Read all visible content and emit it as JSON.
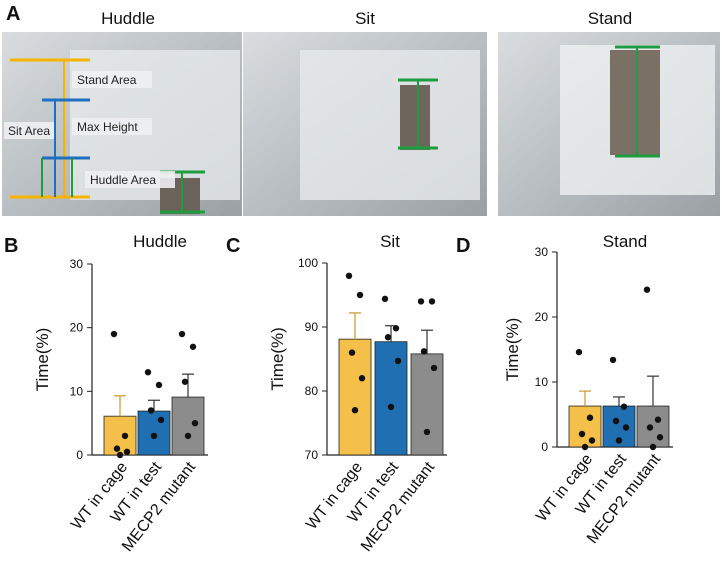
{
  "panel_a": {
    "label": "A",
    "titles": [
      "Huddle",
      "Sit",
      "Stand"
    ],
    "annotations": [
      "Stand Area",
      "Max Height",
      "Sit Area",
      "Huddle Area"
    ]
  },
  "chart_data": [
    {
      "type": "bar",
      "panel_label": "B",
      "title": "Huddle",
      "y_label": "Time(%)",
      "categories": [
        "WT in cage",
        "WT in test",
        "MECP2 mutant"
      ],
      "values": [
        6.1,
        6.9,
        9.1
      ],
      "errors": [
        3.2,
        1.7,
        3.6
      ],
      "points": [
        [
          19,
          3,
          1,
          0.5,
          0
        ],
        [
          13,
          11,
          7,
          5.5,
          3
        ],
        [
          19,
          17,
          11.5,
          5,
          3
        ]
      ],
      "colors": [
        "#f5c04a",
        "#1f6fb2",
        "#8c8c8c"
      ],
      "ylim": [
        0,
        30
      ],
      "yticks": [
        0,
        10,
        20,
        30
      ]
    },
    {
      "type": "bar",
      "panel_label": "C",
      "title": "Sit",
      "y_label": "Time(%)",
      "categories": [
        "WT in cage",
        "WT in test",
        "MECP2 mutant"
      ],
      "values": [
        88.1,
        87.7,
        85.8
      ],
      "errors": [
        4.1,
        2.5,
        3.7
      ],
      "points": [
        [
          98,
          95,
          86,
          82,
          77
        ],
        [
          94.4,
          89.8,
          88.4,
          84.7,
          77.5
        ],
        [
          94,
          94,
          86.2,
          83.6,
          73.6
        ]
      ],
      "colors": [
        "#f5c04a",
        "#1f6fb2",
        "#8c8c8c"
      ],
      "ylim": [
        70,
        100
      ],
      "yticks": [
        70,
        80,
        90,
        100
      ]
    },
    {
      "type": "bar",
      "panel_label": "D",
      "title": "Stand",
      "y_label": "Time(%)",
      "categories": [
        "WT in cage",
        "WT in test",
        "MECP2 mutant"
      ],
      "values": [
        6.3,
        6.3,
        6.3
      ],
      "errors": [
        2.3,
        1.4,
        4.6
      ],
      "points": [
        [
          14.6,
          4.5,
          2,
          1,
          0
        ],
        [
          13.4,
          6.2,
          4,
          3,
          1
        ],
        [
          24.2,
          4.2,
          3,
          1.5,
          0
        ]
      ],
      "colors": [
        "#f5c04a",
        "#1f6fb2",
        "#8c8c8c"
      ],
      "ylim": [
        0,
        30
      ],
      "yticks": [
        0,
        10,
        20,
        30
      ]
    }
  ]
}
